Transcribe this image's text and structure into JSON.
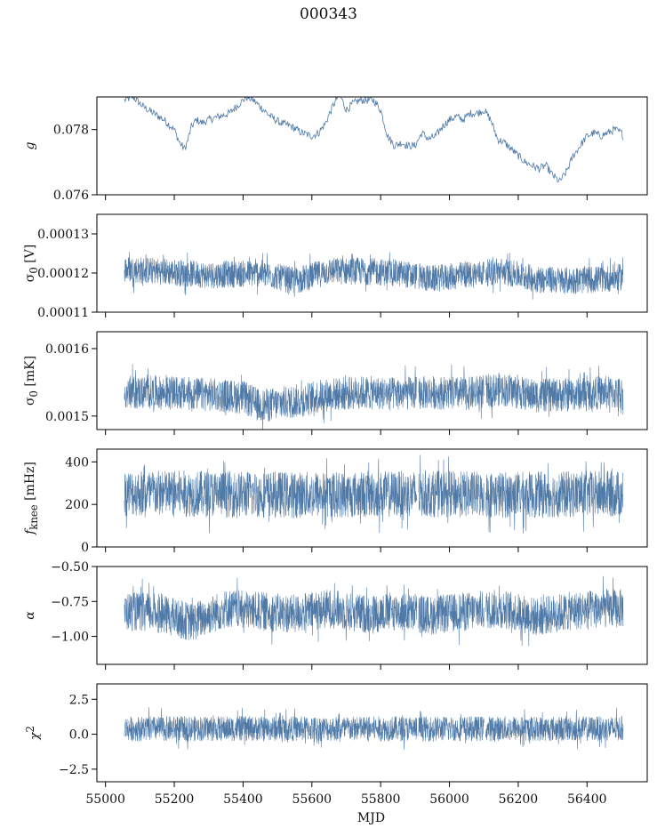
{
  "figure": {
    "title": "000343",
    "xlabel": "MJD",
    "line_color": "#4f79a7"
  },
  "chart_data": [
    {
      "type": "line",
      "ylabel_html": "g",
      "ylabel_italic": true,
      "ylim": [
        0.076,
        0.079
      ],
      "yticks": [
        0.076,
        0.078
      ],
      "ytick_labels": [
        "0.076",
        "0.078"
      ],
      "xlim": [
        54975,
        56575
      ],
      "series": [
        {
          "x": [
            55055,
            55080,
            55110,
            55140,
            55170,
            55200,
            55215,
            55230,
            55240,
            55250,
            55265,
            55280,
            55300,
            55330,
            55360,
            55390,
            55410,
            55430,
            55450,
            55480,
            55510,
            55540,
            55570,
            55600,
            55620,
            55640,
            55660,
            55680,
            55700,
            55720,
            55740,
            55760,
            55780,
            55800,
            55820,
            55840,
            55860,
            55880,
            55900,
            55920,
            55940,
            55960,
            55980,
            56000,
            56020,
            56040,
            56060,
            56080,
            56100,
            56120,
            56140,
            56160,
            56180,
            56200,
            56220,
            56240,
            56260,
            56280,
            56300,
            56320,
            56340,
            56360,
            56380,
            56400,
            56420,
            56440,
            56460,
            56480,
            56500,
            56505
          ],
          "y": [
            0.0789,
            0.079,
            0.0787,
            0.0785,
            0.0783,
            0.078,
            0.0776,
            0.0774,
            0.0777,
            0.0781,
            0.0783,
            0.0782,
            0.0783,
            0.0784,
            0.0785,
            0.0788,
            0.079,
            0.0789,
            0.0787,
            0.0784,
            0.0782,
            0.0781,
            0.0779,
            0.0778,
            0.0779,
            0.0782,
            0.0787,
            0.0791,
            0.0786,
            0.0788,
            0.0789,
            0.0789,
            0.0789,
            0.0786,
            0.0778,
            0.0775,
            0.0776,
            0.0775,
            0.0775,
            0.0779,
            0.0777,
            0.0778,
            0.0781,
            0.0783,
            0.0784,
            0.0783,
            0.0785,
            0.0785,
            0.0786,
            0.0783,
            0.0777,
            0.0776,
            0.0774,
            0.0772,
            0.077,
            0.0769,
            0.0768,
            0.0769,
            0.0766,
            0.0764,
            0.0767,
            0.0772,
            0.0775,
            0.0778,
            0.0779,
            0.0778,
            0.0779,
            0.078,
            0.0779,
            0.0778
          ],
          "noise": 0.00012
        }
      ]
    },
    {
      "type": "line",
      "ylabel_html": "σ<sub>0</sub> [V]",
      "ylim": [
        0.00011,
        0.000135
      ],
      "yticks": [
        0.00011,
        0.00012,
        0.00013
      ],
      "ytick_labels": [
        "0.00011",
        "0.00012",
        "0.00013"
      ],
      "xlim": [
        54975,
        56575
      ],
      "series": [
        {
          "x": [
            55055,
            55150,
            55300,
            55450,
            55550,
            55650,
            55750,
            55850,
            55950,
            56050,
            56150,
            56250,
            56350,
            56450,
            56505
          ],
          "y": [
            0.000121,
            0.0001205,
            0.0001195,
            0.00012,
            0.000118,
            0.0001205,
            0.0001205,
            0.00012,
            0.0001185,
            0.0001195,
            0.0001205,
            0.0001185,
            0.000118,
            0.0001185,
            0.000119
          ],
          "noise": 3.5e-06
        }
      ]
    },
    {
      "type": "line",
      "ylabel_html": "σ<sub>0</sub> [mK]",
      "ylim": [
        0.00148,
        0.001625
      ],
      "yticks": [
        0.0015,
        0.0016
      ],
      "ytick_labels": [
        "0.0015",
        "0.0016"
      ],
      "xlim": [
        54975,
        56575
      ],
      "series": [
        {
          "x": [
            55055,
            55150,
            55300,
            55400,
            55450,
            55550,
            55650,
            55750,
            55850,
            55950,
            56050,
            56150,
            56250,
            56350,
            56450,
            56505
          ],
          "y": [
            0.001535,
            0.001535,
            0.001532,
            0.001528,
            0.001515,
            0.001522,
            0.001532,
            0.001535,
            0.001533,
            0.001535,
            0.001533,
            0.00154,
            0.00153,
            0.001532,
            0.001535,
            0.001533
          ],
          "noise": 2.5e-05
        }
      ]
    },
    {
      "type": "line",
      "ylabel_html": "<i>f</i><sub>knee</sub> [mHz]",
      "ylim": [
        0,
        460
      ],
      "yticks": [
        0,
        200,
        400
      ],
      "ytick_labels": [
        "0",
        "200",
        "400"
      ],
      "xlim": [
        54975,
        56575
      ],
      "series": [
        {
          "x": [
            55055,
            55300,
            55600,
            55900,
            56200,
            56505
          ],
          "y": [
            255,
            250,
            245,
            250,
            245,
            250
          ],
          "noise": 110
        }
      ]
    },
    {
      "type": "line",
      "ylabel_html": "<i>α</i>",
      "ylim": [
        -1.2,
        -0.5
      ],
      "yticks": [
        -1.0,
        -0.75,
        -0.5
      ],
      "ytick_labels": [
        "−1.00",
        "−0.75",
        "−0.50"
      ],
      "xlim": [
        54975,
        56575
      ],
      "series": [
        {
          "x": [
            55055,
            55150,
            55250,
            55350,
            55450,
            55550,
            55650,
            55750,
            55850,
            55950,
            56050,
            56150,
            56250,
            56350,
            56450,
            56505
          ],
          "y": [
            -0.82,
            -0.83,
            -0.9,
            -0.8,
            -0.82,
            -0.84,
            -0.8,
            -0.84,
            -0.82,
            -0.85,
            -0.82,
            -0.8,
            -0.86,
            -0.82,
            -0.8,
            -0.8
          ],
          "noise": 0.14
        }
      ]
    },
    {
      "type": "line",
      "ylabel_html": "<i>χ</i><sup>2</sup>",
      "ylim": [
        -3.4,
        3.6
      ],
      "yticks": [
        -2.5,
        0.0,
        2.5
      ],
      "ytick_labels": [
        "−2.5",
        "0.0",
        "2.5"
      ],
      "xlim": [
        54975,
        56575
      ],
      "series": [
        {
          "x": [
            55055,
            56505
          ],
          "y": [
            0.4,
            0.4
          ],
          "noise": 0.9
        }
      ]
    }
  ],
  "xticks": [
    55000,
    55200,
    55400,
    55600,
    55800,
    56000,
    56200,
    56400
  ],
  "xtick_labels": [
    "55000",
    "55200",
    "55400",
    "55600",
    "55800",
    "56000",
    "56200",
    "56400"
  ],
  "gaps": [
    55908,
    56103
  ]
}
